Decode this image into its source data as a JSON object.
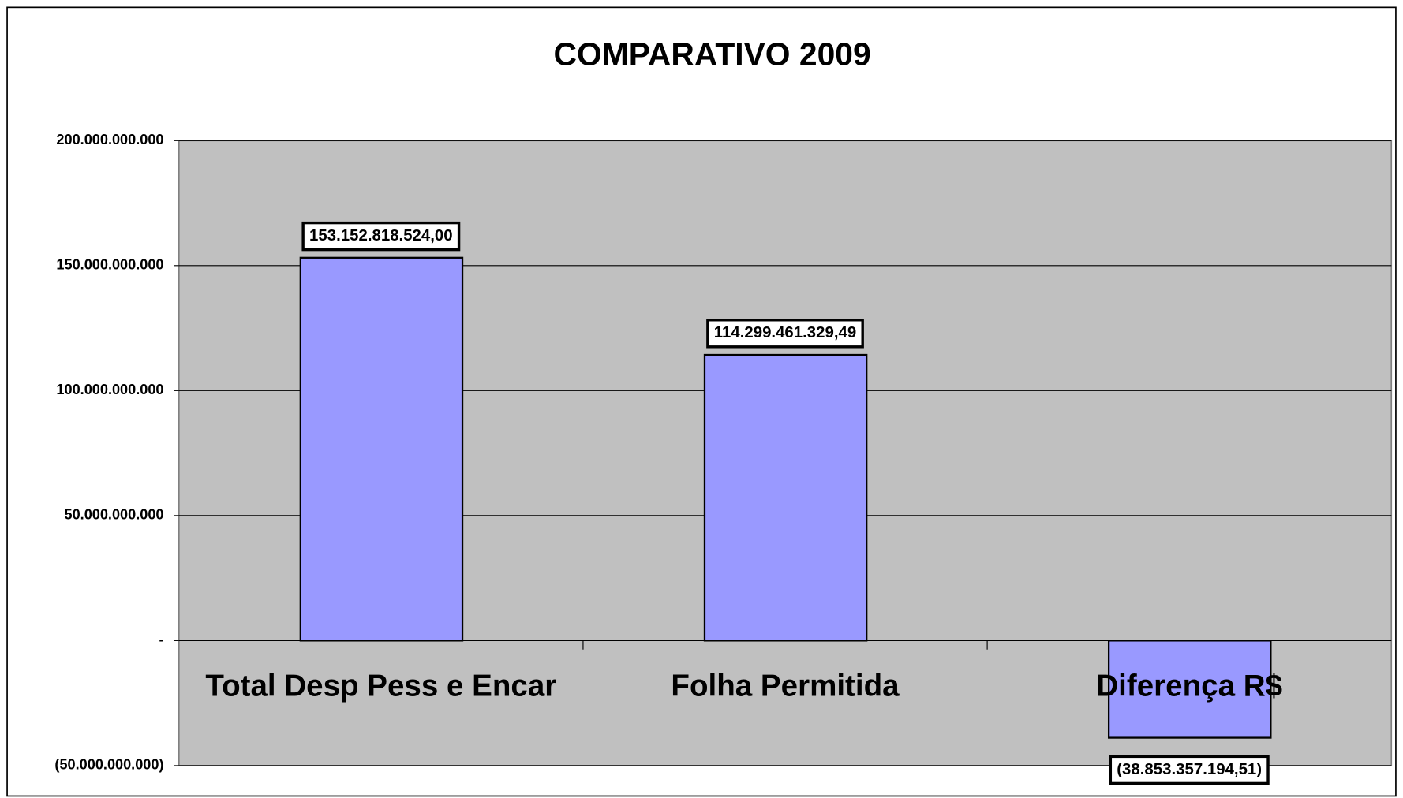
{
  "chart_data": {
    "type": "bar",
    "title": "COMPARATIVO 2009",
    "categories": [
      "Total Desp Pess e Encar",
      "Folha Permitida",
      "Diferença R$"
    ],
    "values": [
      153152818524.0,
      114299461329.49,
      -38853357194.51
    ],
    "value_labels": [
      "153.152.818.524,00",
      "114.299.461.329,49",
      "(38.853.357.194,51)"
    ],
    "color": "#9999ff",
    "ylim": [
      -50000000000,
      200000000000
    ],
    "yticks": [
      {
        "value": -50000000000,
        "label": "(50.000.000.000)"
      },
      {
        "value": 0,
        "label": "-"
      },
      {
        "value": 50000000000,
        "label": "50.000.000.000"
      },
      {
        "value": 100000000000,
        "label": "100.000.000.000"
      },
      {
        "value": 150000000000,
        "label": "150.000.000.000"
      },
      {
        "value": 200000000000,
        "label": "200.000.000.000"
      }
    ],
    "grid": true
  }
}
